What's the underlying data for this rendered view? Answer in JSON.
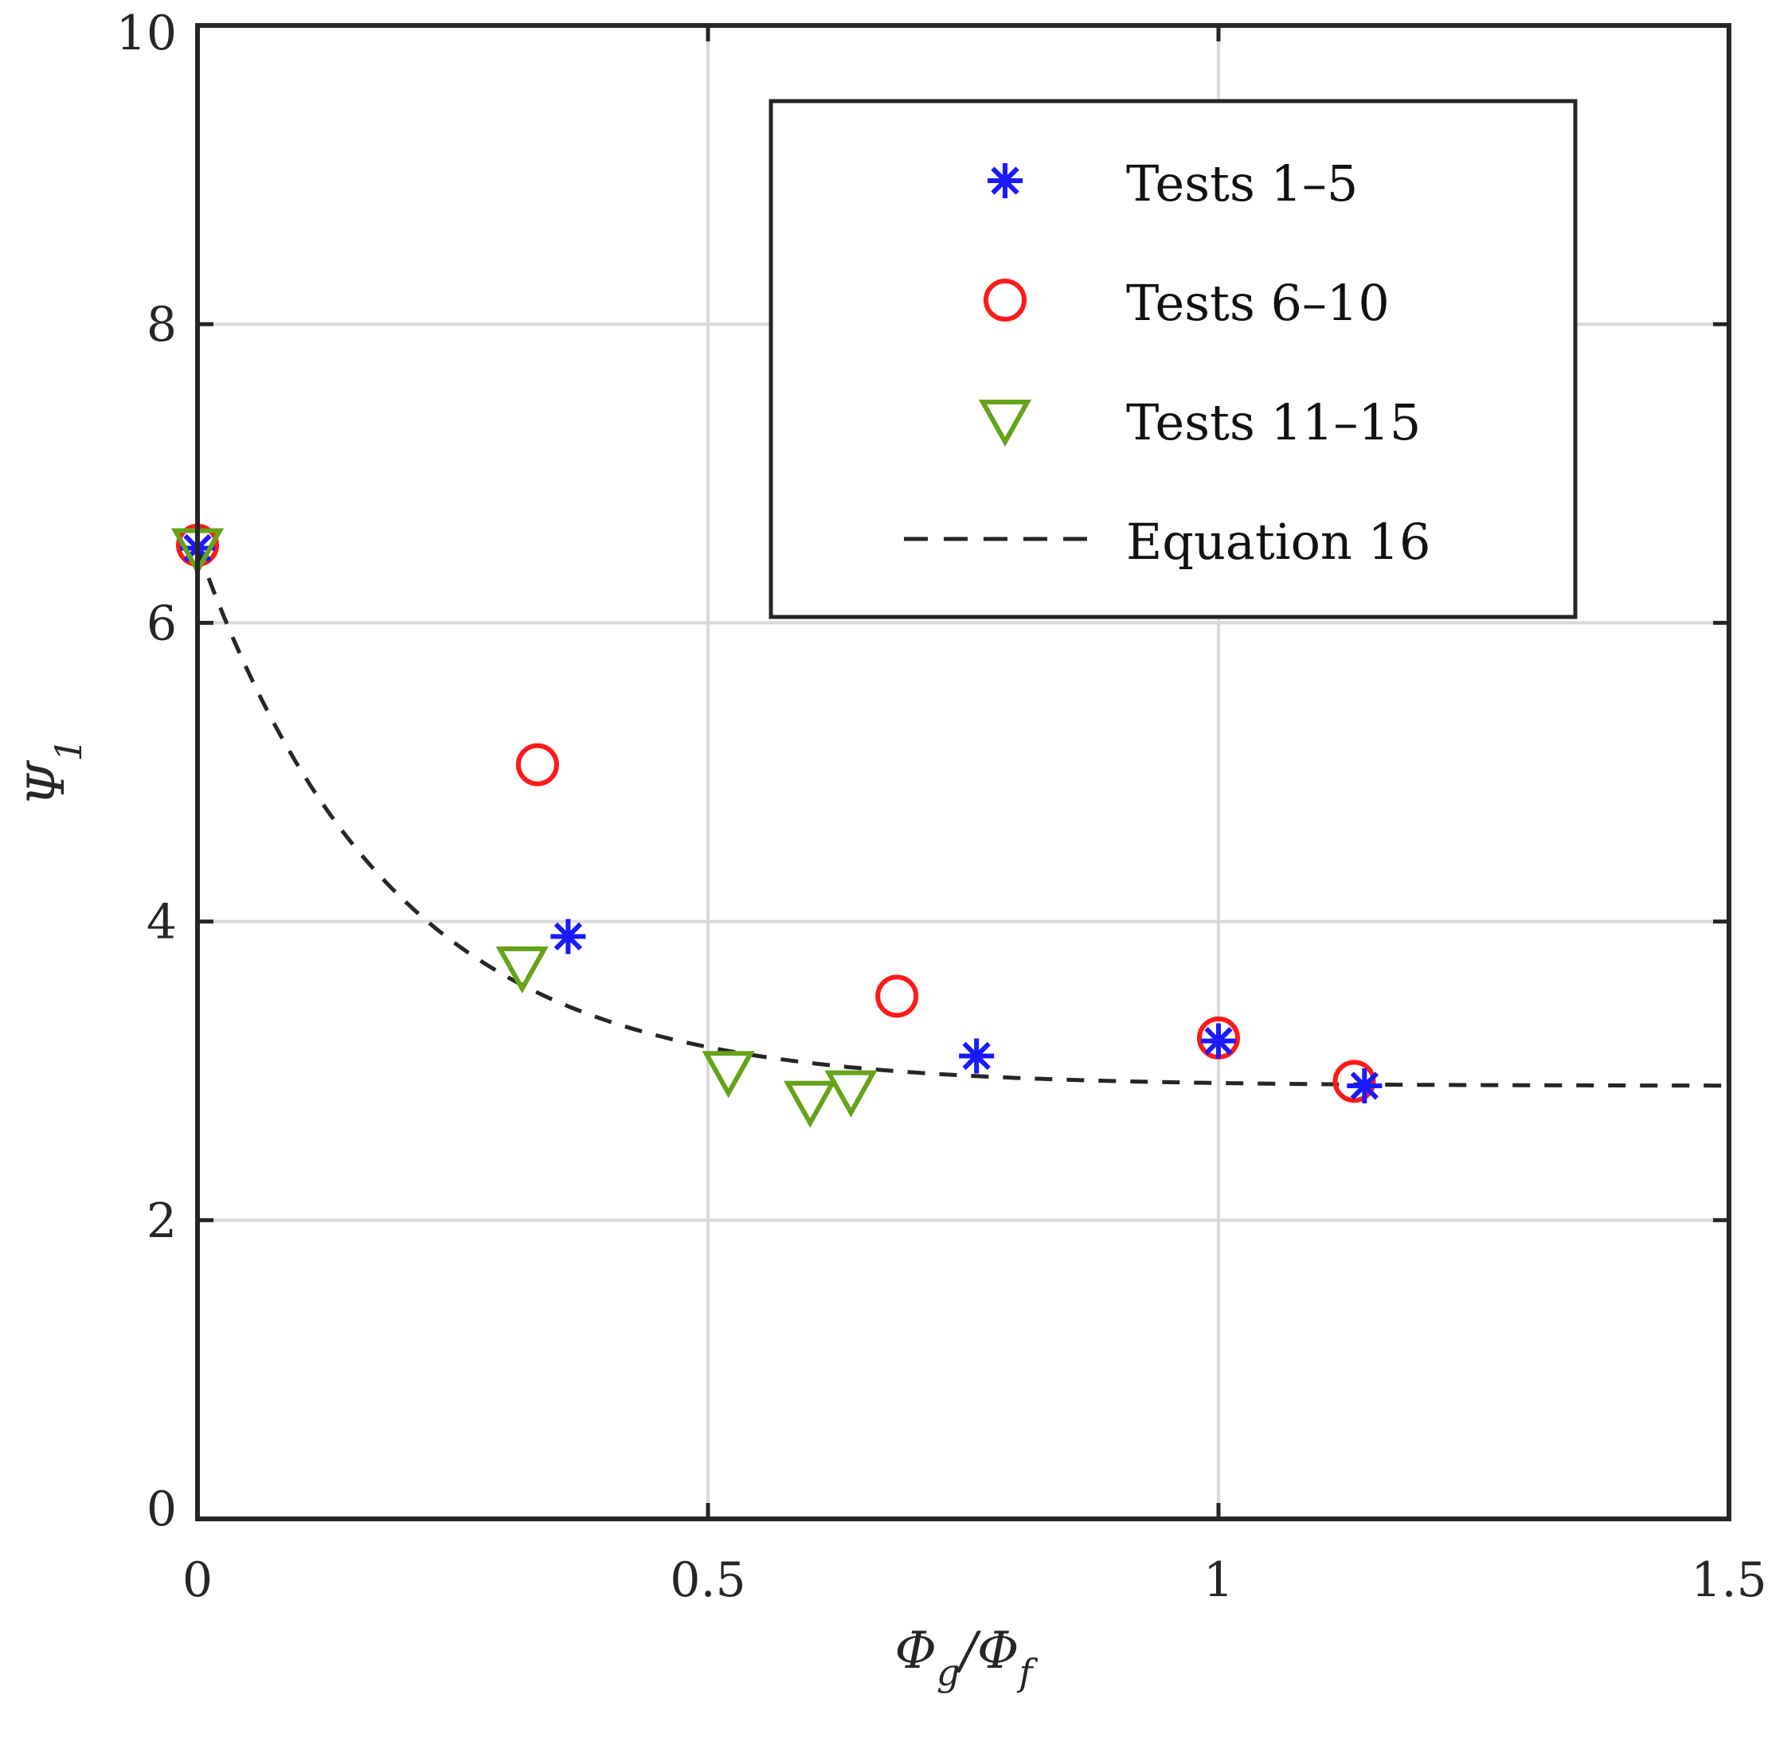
{
  "chart_data": {
    "type": "scatter",
    "title": "",
    "xlabel": "Φg/Φf",
    "ylabel": "Ψ1",
    "xlabel_parts": {
      "base": "Φ",
      "sub1": "g",
      "sep": "/",
      "base2": "Φ",
      "sub2": "f"
    },
    "ylabel_parts": {
      "base": "Ψ",
      "sub": "1"
    },
    "xlim": [
      0,
      1.5
    ],
    "ylim": [
      0,
      10
    ],
    "xticks": [
      0,
      0.5,
      1,
      1.5
    ],
    "xtick_labels": [
      "0",
      "0.5",
      "1",
      "1.5"
    ],
    "yticks": [
      0,
      2,
      4,
      6,
      8,
      10
    ],
    "ytick_labels": [
      "0",
      "2",
      "4",
      "6",
      "8",
      "10"
    ],
    "grid": true,
    "legend_position": "top-right",
    "series": [
      {
        "name": "Tests 1–5",
        "marker": "asterisk",
        "color": "#1a1aff",
        "x": [
          0,
          0.363,
          0.763,
          1.0,
          1.143
        ],
        "y": [
          6.5,
          3.9,
          3.1,
          3.2,
          2.9
        ]
      },
      {
        "name": "Tests 6–10",
        "marker": "circle",
        "color": "#ff1a1a",
        "x": [
          0,
          0.333,
          0.685,
          1.0,
          1.133
        ],
        "y": [
          6.52,
          5.05,
          3.5,
          3.22,
          2.93
        ]
      },
      {
        "name": "Tests 11–15",
        "marker": "triangle-down",
        "color": "#66a31a",
        "x": [
          0,
          0.318,
          0.52,
          0.6,
          0.64
        ],
        "y": [
          6.5,
          3.7,
          3.0,
          2.8,
          2.87
        ]
      },
      {
        "name": "Equation 16",
        "marker": "dashed-line",
        "color": "#262626",
        "formula": "2.9 + 3.6*exp(-x/0.19)"
      }
    ]
  }
}
